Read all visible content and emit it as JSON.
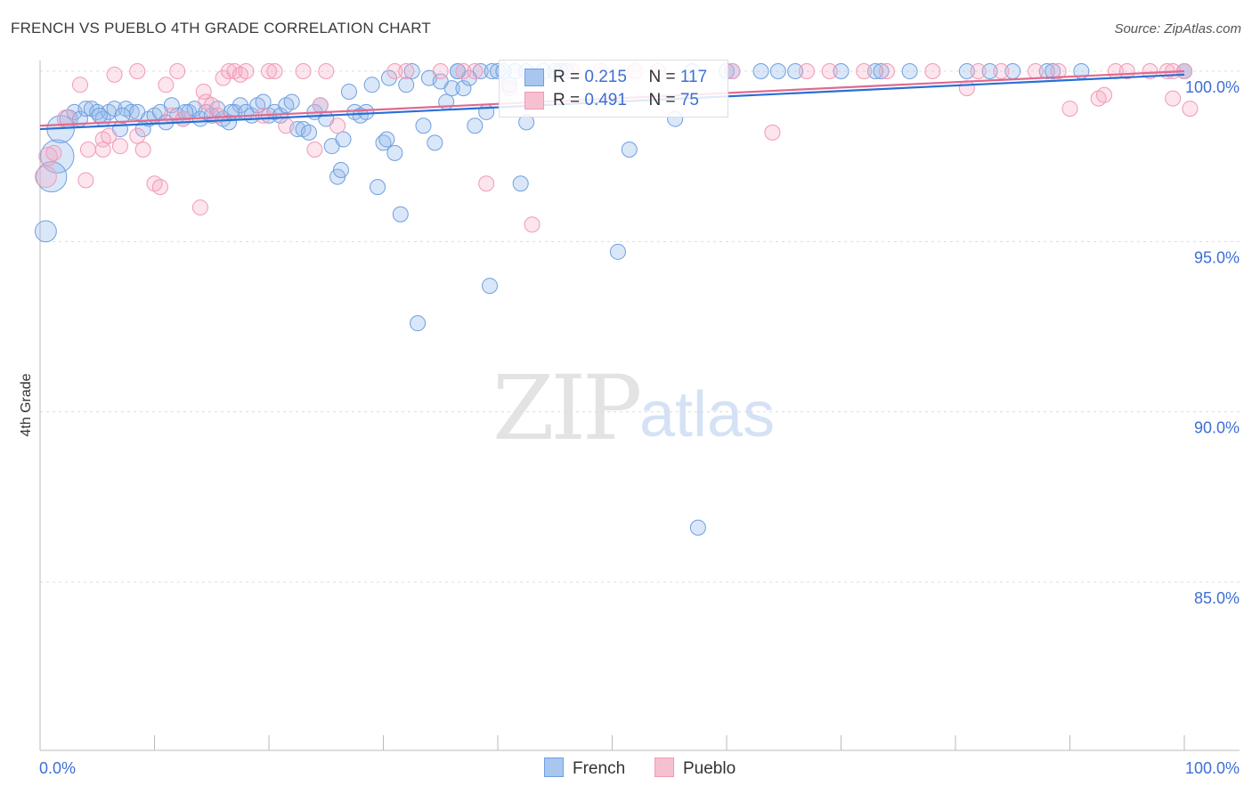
{
  "title": "FRENCH VS PUEBLO 4TH GRADE CORRELATION CHART",
  "source": "Source: ZipAtlas.com",
  "watermark": {
    "zip": "ZIP",
    "atlas": "atlas"
  },
  "colors": {
    "french": "#6f9fe0",
    "pueblo": "#f09ab5",
    "french_line": "#2a6fd4",
    "pueblo_line": "#e06a8f",
    "axis_text": "#3d6fd6"
  },
  "legend": {
    "french": {
      "r_label": "R = ",
      "r_value": "0.215",
      "n_label": "N = ",
      "n_value": "117"
    },
    "pueblo": {
      "r_label": "R = ",
      "r_value": "0.491",
      "n_label": "N = ",
      "n_value": "75"
    }
  },
  "bottom_legend": {
    "french": "French",
    "pueblo": "Pueblo"
  },
  "chart_data": {
    "type": "scatter",
    "title": "FRENCH VS PUEBLO 4TH GRADE CORRELATION CHART",
    "xlabel": "",
    "ylabel": "4th Grade",
    "xlim": [
      0,
      100
    ],
    "ylim": [
      80.5,
      100.3
    ],
    "x_tick_labels": [
      {
        "value": 0,
        "label": "0.0%"
      },
      {
        "value": 100,
        "label": "100.0%"
      }
    ],
    "y_ticks": [
      {
        "value": 100,
        "label": "100.0%"
      },
      {
        "value": 95,
        "label": "95.0%"
      },
      {
        "value": 90,
        "label": "90.0%"
      },
      {
        "value": 85,
        "label": "85.0%"
      }
    ],
    "series": [
      {
        "name": "French",
        "trend": {
          "x": [
            0,
            100
          ],
          "y": [
            98.3,
            99.9
          ]
        },
        "points": [
          [
            0.5,
            95.3,
            14
          ],
          [
            1.5,
            97.5,
            22
          ],
          [
            1.0,
            96.9,
            20
          ],
          [
            1.8,
            98.3,
            18
          ],
          [
            2.5,
            98.6,
            12
          ],
          [
            3.0,
            98.8,
            10
          ],
          [
            3.5,
            98.6,
            10
          ],
          [
            4.0,
            98.9,
            10
          ],
          [
            4.5,
            98.9,
            10
          ],
          [
            5.0,
            98.8,
            10
          ],
          [
            5.5,
            98.6,
            10
          ],
          [
            6.0,
            98.8,
            10
          ],
          [
            6.5,
            98.9,
            10
          ],
          [
            7.0,
            98.3,
            10
          ],
          [
            7.5,
            98.9,
            10
          ],
          [
            8.0,
            98.8,
            10
          ],
          [
            8.5,
            98.8,
            10
          ],
          [
            9.0,
            98.3,
            10
          ],
          [
            9.5,
            98.6,
            10
          ],
          [
            10.0,
            98.7,
            10
          ],
          [
            10.5,
            98.8,
            10
          ],
          [
            11.0,
            98.5,
            10
          ],
          [
            11.5,
            99.0,
            10
          ],
          [
            12.0,
            98.7,
            10
          ],
          [
            12.5,
            98.6,
            10
          ],
          [
            13.0,
            98.8,
            10
          ],
          [
            13.5,
            98.9,
            10
          ],
          [
            14.0,
            98.6,
            10
          ],
          [
            14.5,
            98.8,
            10
          ],
          [
            15.0,
            98.7,
            10
          ],
          [
            15.5,
            98.9,
            10
          ],
          [
            16.0,
            98.6,
            10
          ],
          [
            16.5,
            98.5,
            10
          ],
          [
            17.0,
            98.8,
            10
          ],
          [
            17.5,
            99.0,
            10
          ],
          [
            18.0,
            98.8,
            10
          ],
          [
            18.5,
            98.7,
            10
          ],
          [
            19.0,
            99.0,
            10
          ],
          [
            19.5,
            99.1,
            10
          ],
          [
            20.0,
            98.7,
            10
          ],
          [
            20.5,
            98.8,
            10
          ],
          [
            21.0,
            98.7,
            10
          ],
          [
            21.5,
            99.0,
            10
          ],
          [
            22.0,
            99.1,
            10
          ],
          [
            22.5,
            98.3,
            10
          ],
          [
            23.0,
            98.3,
            10
          ],
          [
            23.5,
            98.2,
            10
          ],
          [
            24.0,
            98.8,
            10
          ],
          [
            24.5,
            99.0,
            10
          ],
          [
            25.0,
            98.6,
            10
          ],
          [
            25.5,
            97.8,
            10
          ],
          [
            26.0,
            96.9,
            10
          ],
          [
            26.3,
            97.1,
            10
          ],
          [
            26.5,
            98.0,
            10
          ],
          [
            27.0,
            99.4,
            10
          ],
          [
            27.5,
            98.8,
            10
          ],
          [
            28.0,
            98.7,
            10
          ],
          [
            28.5,
            98.8,
            10
          ],
          [
            29.0,
            99.6,
            10
          ],
          [
            29.5,
            96.6,
            10
          ],
          [
            30.0,
            97.9,
            10
          ],
          [
            30.5,
            99.8,
            10
          ],
          [
            31.0,
            97.6,
            10
          ],
          [
            31.5,
            95.8,
            10
          ],
          [
            32.0,
            99.6,
            10
          ],
          [
            32.5,
            100.0,
            10
          ],
          [
            33.0,
            92.6,
            10
          ],
          [
            33.5,
            98.4,
            10
          ],
          [
            34.0,
            99.8,
            10
          ],
          [
            34.5,
            97.9,
            10
          ],
          [
            35.0,
            99.7,
            10
          ],
          [
            35.5,
            99.1,
            10
          ],
          [
            36.0,
            99.5,
            10
          ],
          [
            36.5,
            100.0,
            10
          ],
          [
            37.0,
            99.5,
            10
          ],
          [
            37.5,
            99.8,
            10
          ],
          [
            38.0,
            98.4,
            10
          ],
          [
            38.5,
            100.0,
            10
          ],
          [
            39.0,
            98.8,
            10
          ],
          [
            39.3,
            93.7,
            10
          ],
          [
            39.5,
            100.0,
            10
          ],
          [
            40.0,
            100.0,
            10
          ],
          [
            41.0,
            99.6,
            10
          ],
          [
            41.5,
            100.0,
            10
          ],
          [
            42.0,
            96.7,
            10
          ],
          [
            42.5,
            98.5,
            10
          ],
          [
            44.0,
            100.0,
            10
          ],
          [
            45.0,
            100.0,
            10
          ],
          [
            45.5,
            100.0,
            10
          ],
          [
            46.0,
            100.0,
            10
          ],
          [
            50.5,
            94.7,
            10
          ],
          [
            51.5,
            97.7,
            10
          ],
          [
            55.5,
            98.6,
            10
          ],
          [
            57.0,
            100.0,
            10
          ],
          [
            60.0,
            100.0,
            10
          ],
          [
            60.5,
            100.0,
            10
          ],
          [
            57.5,
            86.6,
            10
          ],
          [
            63.0,
            100.0,
            10
          ],
          [
            64.5,
            100.0,
            10
          ],
          [
            70.0,
            100.0,
            10
          ],
          [
            73.0,
            100.0,
            10
          ],
          [
            73.5,
            100.0,
            10
          ],
          [
            76.0,
            100.0,
            10
          ],
          [
            81.0,
            100.0,
            10
          ],
          [
            83.0,
            100.0,
            10
          ],
          [
            85.0,
            100.0,
            10
          ],
          [
            88.0,
            100.0,
            10
          ],
          [
            88.5,
            100.0,
            10
          ],
          [
            91.0,
            100.0,
            10
          ],
          [
            100.0,
            100.0,
            10
          ],
          [
            100.0,
            100.0,
            10
          ],
          [
            36.5,
            100.0,
            10
          ],
          [
            40.5,
            100.0,
            10
          ],
          [
            66.0,
            100.0,
            10
          ],
          [
            42.5,
            100.0,
            10
          ],
          [
            30.3,
            98.0,
            10
          ],
          [
            16.7,
            98.8,
            10
          ],
          [
            12.7,
            98.8,
            10
          ],
          [
            5.2,
            98.7,
            10
          ],
          [
            7.2,
            98.7,
            10
          ]
        ]
      },
      {
        "name": "Pueblo",
        "trend": {
          "x": [
            0,
            100
          ],
          "y": [
            98.4,
            100.0
          ]
        },
        "points": [
          [
            0.5,
            96.9,
            14
          ],
          [
            0.7,
            97.5,
            12
          ],
          [
            1.2,
            97.6,
            10
          ],
          [
            2.3,
            98.6,
            12
          ],
          [
            3.5,
            99.6,
            10
          ],
          [
            4.0,
            96.8,
            10
          ],
          [
            4.2,
            97.7,
            10
          ],
          [
            5.5,
            97.7,
            10
          ],
          [
            5.5,
            98.0,
            10
          ],
          [
            6.0,
            98.1,
            10
          ],
          [
            6.5,
            99.9,
            10
          ],
          [
            7.0,
            97.8,
            10
          ],
          [
            8.5,
            100.0,
            10
          ],
          [
            8.5,
            98.1,
            10
          ],
          [
            9.0,
            97.7,
            10
          ],
          [
            10.0,
            96.7,
            10
          ],
          [
            10.5,
            96.6,
            10
          ],
          [
            11.0,
            99.6,
            10
          ],
          [
            11.5,
            98.7,
            10
          ],
          [
            12.0,
            100.0,
            10
          ],
          [
            12.5,
            98.6,
            10
          ],
          [
            14.0,
            96.0,
            10
          ],
          [
            14.3,
            99.4,
            10
          ],
          [
            14.5,
            99.1,
            10
          ],
          [
            15.0,
            99.0,
            10
          ],
          [
            15.5,
            98.7,
            10
          ],
          [
            16.0,
            99.8,
            10
          ],
          [
            16.5,
            100.0,
            10
          ],
          [
            17.0,
            100.0,
            10
          ],
          [
            17.5,
            99.9,
            10
          ],
          [
            18.0,
            100.0,
            10
          ],
          [
            19.5,
            98.7,
            10
          ],
          [
            20.0,
            100.0,
            10
          ],
          [
            20.5,
            100.0,
            10
          ],
          [
            21.5,
            98.4,
            10
          ],
          [
            23.0,
            100.0,
            10
          ],
          [
            24.0,
            97.7,
            10
          ],
          [
            24.5,
            99.0,
            10
          ],
          [
            25.0,
            100.0,
            10
          ],
          [
            26.0,
            98.4,
            10
          ],
          [
            31.0,
            100.0,
            10
          ],
          [
            32.0,
            100.0,
            10
          ],
          [
            35.0,
            100.0,
            10
          ],
          [
            37.0,
            100.0,
            10
          ],
          [
            38.0,
            100.0,
            10
          ],
          [
            39.0,
            96.7,
            10
          ],
          [
            41.0,
            99.5,
            10
          ],
          [
            43.0,
            95.5,
            10
          ],
          [
            46.5,
            100.0,
            10
          ],
          [
            49.0,
            100.0,
            10
          ],
          [
            52.0,
            100.0,
            10
          ],
          [
            54.0,
            100.0,
            10
          ],
          [
            60.5,
            100.0,
            10
          ],
          [
            64.0,
            98.2,
            10
          ],
          [
            67.0,
            100.0,
            10
          ],
          [
            69.0,
            100.0,
            10
          ],
          [
            72.0,
            100.0,
            10
          ],
          [
            74.0,
            100.0,
            10
          ],
          [
            78.0,
            100.0,
            10
          ],
          [
            81.0,
            99.5,
            10
          ],
          [
            82.0,
            100.0,
            10
          ],
          [
            84.0,
            100.0,
            10
          ],
          [
            87.0,
            100.0,
            10
          ],
          [
            89.0,
            100.0,
            10
          ],
          [
            90.0,
            98.9,
            10
          ],
          [
            92.5,
            99.2,
            10
          ],
          [
            93.0,
            99.3,
            10
          ],
          [
            94.0,
            100.0,
            10
          ],
          [
            95.0,
            100.0,
            10
          ],
          [
            97.0,
            100.0,
            10
          ],
          [
            98.5,
            100.0,
            10
          ],
          [
            99.0,
            99.2,
            10
          ],
          [
            100.5,
            98.9,
            10
          ],
          [
            99.0,
            100.0,
            10
          ],
          [
            100.0,
            100.0,
            10
          ]
        ]
      }
    ]
  }
}
